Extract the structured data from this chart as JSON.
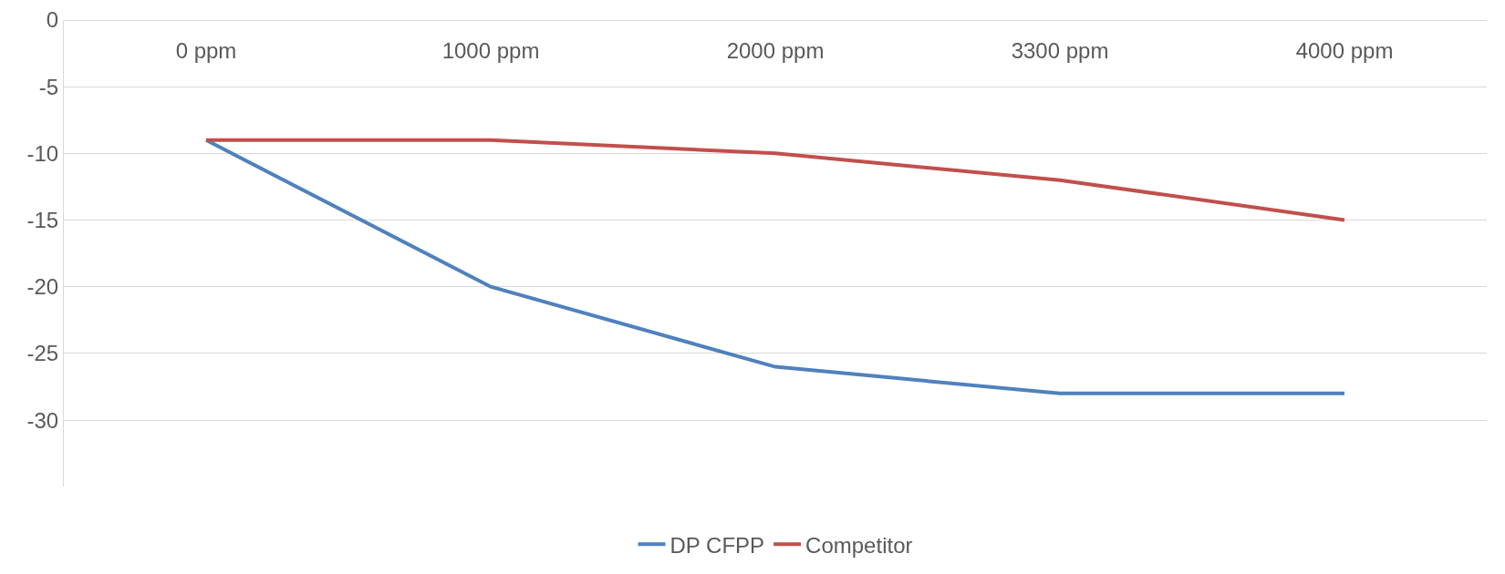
{
  "chart_data": {
    "type": "line",
    "categories": [
      "0 ppm",
      "1000 ppm",
      "2000 ppm",
      "3300 ppm",
      "4000 ppm"
    ],
    "series": [
      {
        "name": "DP CFPP",
        "color": "#4f81bd",
        "values": [
          -9,
          -20,
          -26,
          -28,
          -28
        ]
      },
      {
        "name": "Competitor",
        "color": "#c0504d",
        "values": [
          -9,
          -9,
          -10,
          -12,
          -15
        ]
      }
    ],
    "ylim": [
      -35,
      0
    ],
    "yticks": [
      0,
      -5,
      -10,
      -15,
      -20,
      -25,
      -30
    ],
    "grid": "y",
    "legend": "bottom",
    "marker": "none",
    "line_style": "solid"
  }
}
